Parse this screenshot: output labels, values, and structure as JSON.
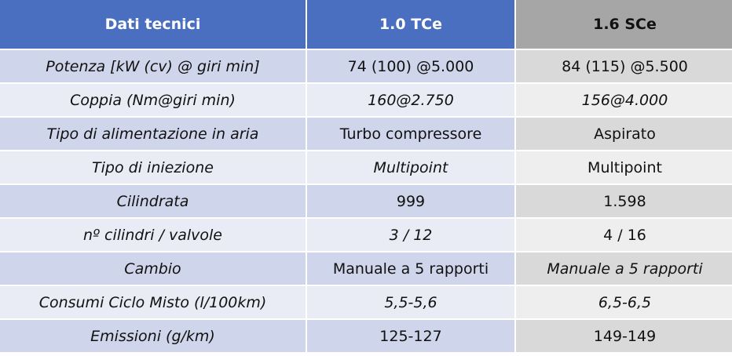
{
  "table": {
    "header": [
      "Dati tecnici",
      "1.0 TCe",
      "1.6 SCe"
    ],
    "rows": [
      [
        "Potenza [kW (cv) @ giri min]",
        "74 (100) @5.000",
        "84 (115) @5.500"
      ],
      [
        "Coppia (Nm@giri min)",
        "160@2.750",
        "156@4.000"
      ],
      [
        "Tipo di alimentazione  in aria",
        "Turbo compressore",
        "Aspirato"
      ],
      [
        "Tipo di iniezione",
        "Multipoint",
        "Multipoint"
      ],
      [
        "Cilindrata",
        "999",
        "1.598"
      ],
      [
        "nº cilindri / valvole",
        "3 / 12",
        "4 / 16"
      ],
      [
        "Cambio",
        "Manuale a 5 rapporti",
        "Manuale a 5 rapporti"
      ],
      [
        "Consumi Ciclo Misto (l/100km)",
        "5,5-5,6",
        "6,5-6,5"
      ],
      [
        "Emissioni (g/km)",
        "125-127",
        "149-149"
      ]
    ]
  }
}
